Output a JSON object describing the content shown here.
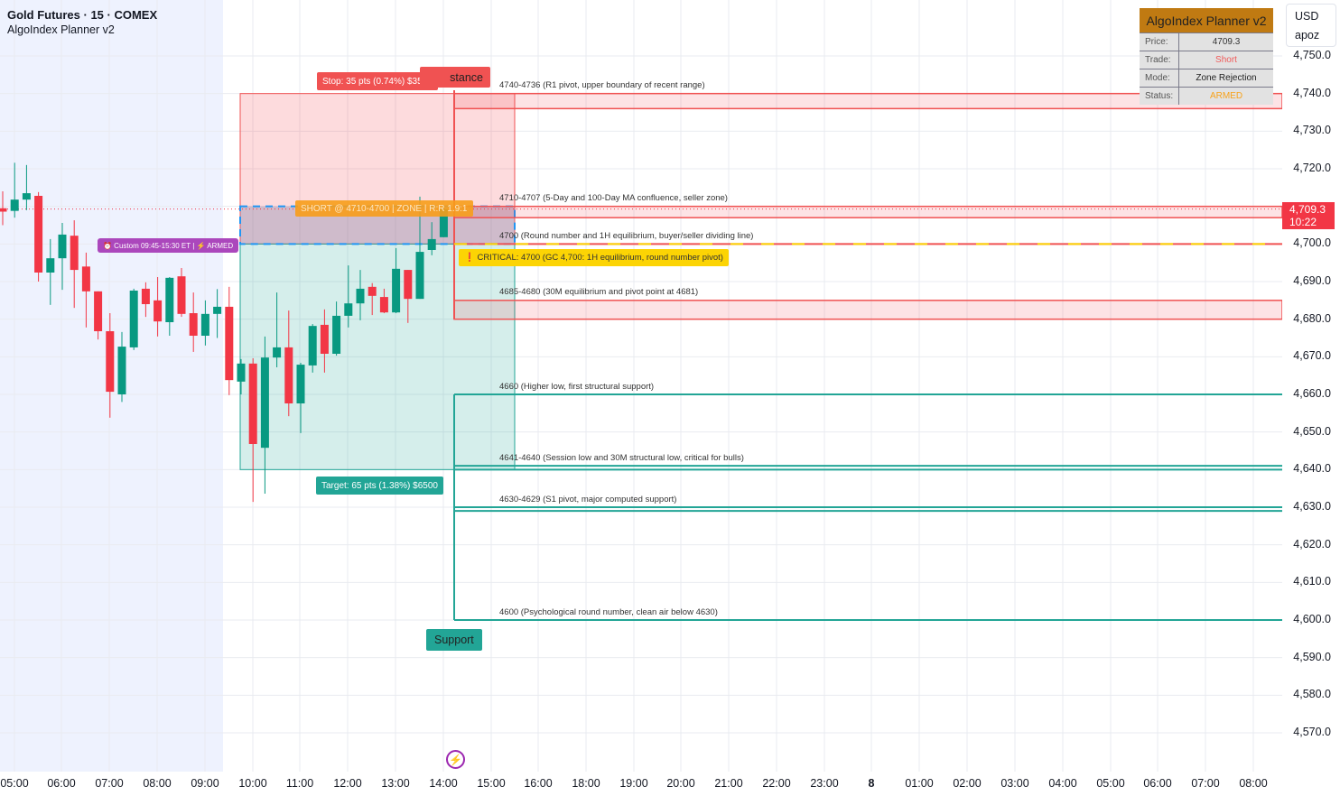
{
  "header": {
    "title": "Gold Futures · 15 · COMEX",
    "indicator": "AlgoIndex Planner v2"
  },
  "currency_menu": {
    "currency": "USD",
    "user": "apoz"
  },
  "panel": {
    "title": "AlgoIndex Planner v2",
    "rows": [
      {
        "key": "Price:",
        "value": "4709.3",
        "color": "#333333"
      },
      {
        "key": "Trade:",
        "value": "Short",
        "color": "#f05a5a"
      },
      {
        "key": "Mode:",
        "value": "Zone Rejection",
        "color": "#222222"
      },
      {
        "key": "Status:",
        "value": "ARMED",
        "color": "#f7a21b"
      }
    ]
  },
  "price_axis": {
    "labels": [
      "4,750.0",
      "4,740.0",
      "4,730.0",
      "4,720.0",
      "4,700.0",
      "4,690.0",
      "4,680.0",
      "4,670.0",
      "4,660.0",
      "4,650.0",
      "4,640.0",
      "4,630.0",
      "4,620.0",
      "4,610.0",
      "4,600.0",
      "4,590.0",
      "4,580.0",
      "4,570.0"
    ],
    "values": [
      4750,
      4740,
      4730,
      4720,
      4700,
      4690,
      4680,
      4670,
      4660,
      4650,
      4640,
      4630,
      4620,
      4610,
      4600,
      4590,
      4580,
      4570
    ],
    "last_price": "4,709.3",
    "countdown": "10:22",
    "last_value": 4709.3
  },
  "time_axis": {
    "labels": [
      "05:00",
      "06:00",
      "07:00",
      "08:00",
      "09:00",
      "10:00",
      "11:00",
      "12:00",
      "13:00",
      "14:00",
      "15:00",
      "16:00",
      "18:00",
      "19:00",
      "20:00",
      "21:00",
      "22:00",
      "23:00",
      "8",
      "01:00",
      "02:00",
      "03:00",
      "04:00",
      "05:00",
      "06:00",
      "07:00",
      "08:00"
    ]
  },
  "chart_data": {
    "type": "candlestick",
    "ylim": [
      4565,
      4760
    ],
    "candles": [
      [
        4709.5,
        4714,
        4705,
        4708.6
      ],
      [
        4708.8,
        4721.6,
        4707,
        4711.8
      ],
      [
        4711.8,
        4721,
        4709,
        4713.5
      ],
      [
        4712.8,
        4713.8,
        4690,
        4692.4
      ],
      [
        4692.4,
        4701.3,
        4683.8,
        4696.2
      ],
      [
        4696.2,
        4705.6,
        4687.8,
        4702.5
      ],
      [
        4702.2,
        4706.3,
        4683,
        4693.1
      ],
      [
        4694,
        4697.7,
        4677.8,
        4687.4
      ],
      [
        4687.4,
        4687.4,
        4674.6,
        4676.8
      ],
      [
        4676.8,
        4681.6,
        4653.8,
        4660.7
      ],
      [
        4660,
        4676.6,
        4658,
        4672.7
      ],
      [
        4672.5,
        4688.1,
        4671.8,
        4687.6
      ],
      [
        4688.1,
        4689.8,
        4680.6,
        4684
      ],
      [
        4685,
        4691.2,
        4675.4,
        4679.4
      ],
      [
        4679.2,
        4691.2,
        4675.6,
        4691
      ],
      [
        4691.4,
        4693.6,
        4680.6,
        4681.4
      ],
      [
        4681.6,
        4687.1,
        4671.3,
        4675.6
      ],
      [
        4675.6,
        4685,
        4673,
        4681.4
      ],
      [
        4681.4,
        4688,
        4675,
        4683.3
      ],
      [
        4683.3,
        4688.6,
        4659.8,
        4663.8
      ],
      [
        4663.4,
        4669.4,
        4660,
        4668.2
      ],
      [
        4668.2,
        4669.6,
        4631.4,
        4646.8
      ],
      [
        4645.8,
        4675.4,
        4633.6,
        4669.8
      ],
      [
        4669.8,
        4687.1,
        4667.2,
        4672.5
      ],
      [
        4672.5,
        4682.3,
        4654.2,
        4657.6
      ],
      [
        4657.6,
        4668.4,
        4649.7,
        4667.9
      ],
      [
        4667.7,
        4678.7,
        4665.8,
        4678.2
      ],
      [
        4678.5,
        4682.6,
        4665.8,
        4670.8
      ],
      [
        4670.8,
        4684.7,
        4670.3,
        4680.9
      ],
      [
        4680.9,
        4694.3,
        4677.8,
        4684.2
      ],
      [
        4684.2,
        4693.1,
        4679.7,
        4688.1
      ],
      [
        4688.6,
        4689.6,
        4681.1,
        4686.2
      ],
      [
        4685.9,
        4688.1,
        4681.6,
        4681.8
      ],
      [
        4681.8,
        4698.9,
        4681.6,
        4693.4
      ],
      [
        4693.1,
        4693.1,
        4679,
        4685.4
      ],
      [
        4685.4,
        4712.6,
        4685.4,
        4697.9
      ],
      [
        4698.4,
        4705.8,
        4697,
        4701.3
      ],
      [
        4701.8,
        4710.2,
        4701.8,
        4709.3
      ]
    ],
    "up_color": "#089981",
    "down_color": "#f23645",
    "trade": {
      "entry_top": 4710,
      "entry_bottom": 4700,
      "stop": 4740,
      "target": 4640
    },
    "resistance_zones": [
      {
        "top": 4740,
        "bottom": 4736
      },
      {
        "top": 4710,
        "bottom": 4707
      },
      {
        "top": 4685,
        "bottom": 4680
      }
    ],
    "critical_level": 4700,
    "support_levels": [
      [
        4660
      ],
      [
        4641,
        4640
      ],
      [
        4630,
        4629
      ],
      [
        4600
      ]
    ]
  },
  "labels": {
    "stop": "Stop: 35 pts (0.74%) $3500",
    "target": "Target: 65 pts (1.38%) $6500",
    "entry": "SHORT @ 4710-4700 | ZONE | R:R 1.9:1",
    "session": "⏰ Custom 09:45-15:30 ET | ⚡ ARMED",
    "resistance": "stance",
    "support": "Support",
    "critical": "❗ CRITICAL: 4700 (GC 4,700: 1H equilibrium, round number pivot)",
    "levels": [
      {
        "text": "4740-4736 (R1 pivot, upper boundary of recent range)",
        "price": 4742.5
      },
      {
        "text": "4710-4707 (5-Day and 100-Day MA confluence, seller zone)",
        "price": 4712.5
      },
      {
        "text": "4700 (Round number and 1H equilibrium, buyer/seller dividing line)",
        "price": 4702.5
      },
      {
        "text": "4685-4680 (30M equilibrium and pivot point at 4681)",
        "price": 4687.5
      },
      {
        "text": "4660 (Higher low, first structural support)",
        "price": 4662.5
      },
      {
        "text": "4641-4640 (Session low and 30M structural low, critical for bulls)",
        "price": 4643.5
      },
      {
        "text": "4630-4629 (S1 pivot, major computed support)",
        "price": 4632.5
      },
      {
        "text": "4600 (Psychological round number, clean air below 4630)",
        "price": 4602.5
      }
    ]
  },
  "icons": {
    "event": "lightning-icon"
  }
}
